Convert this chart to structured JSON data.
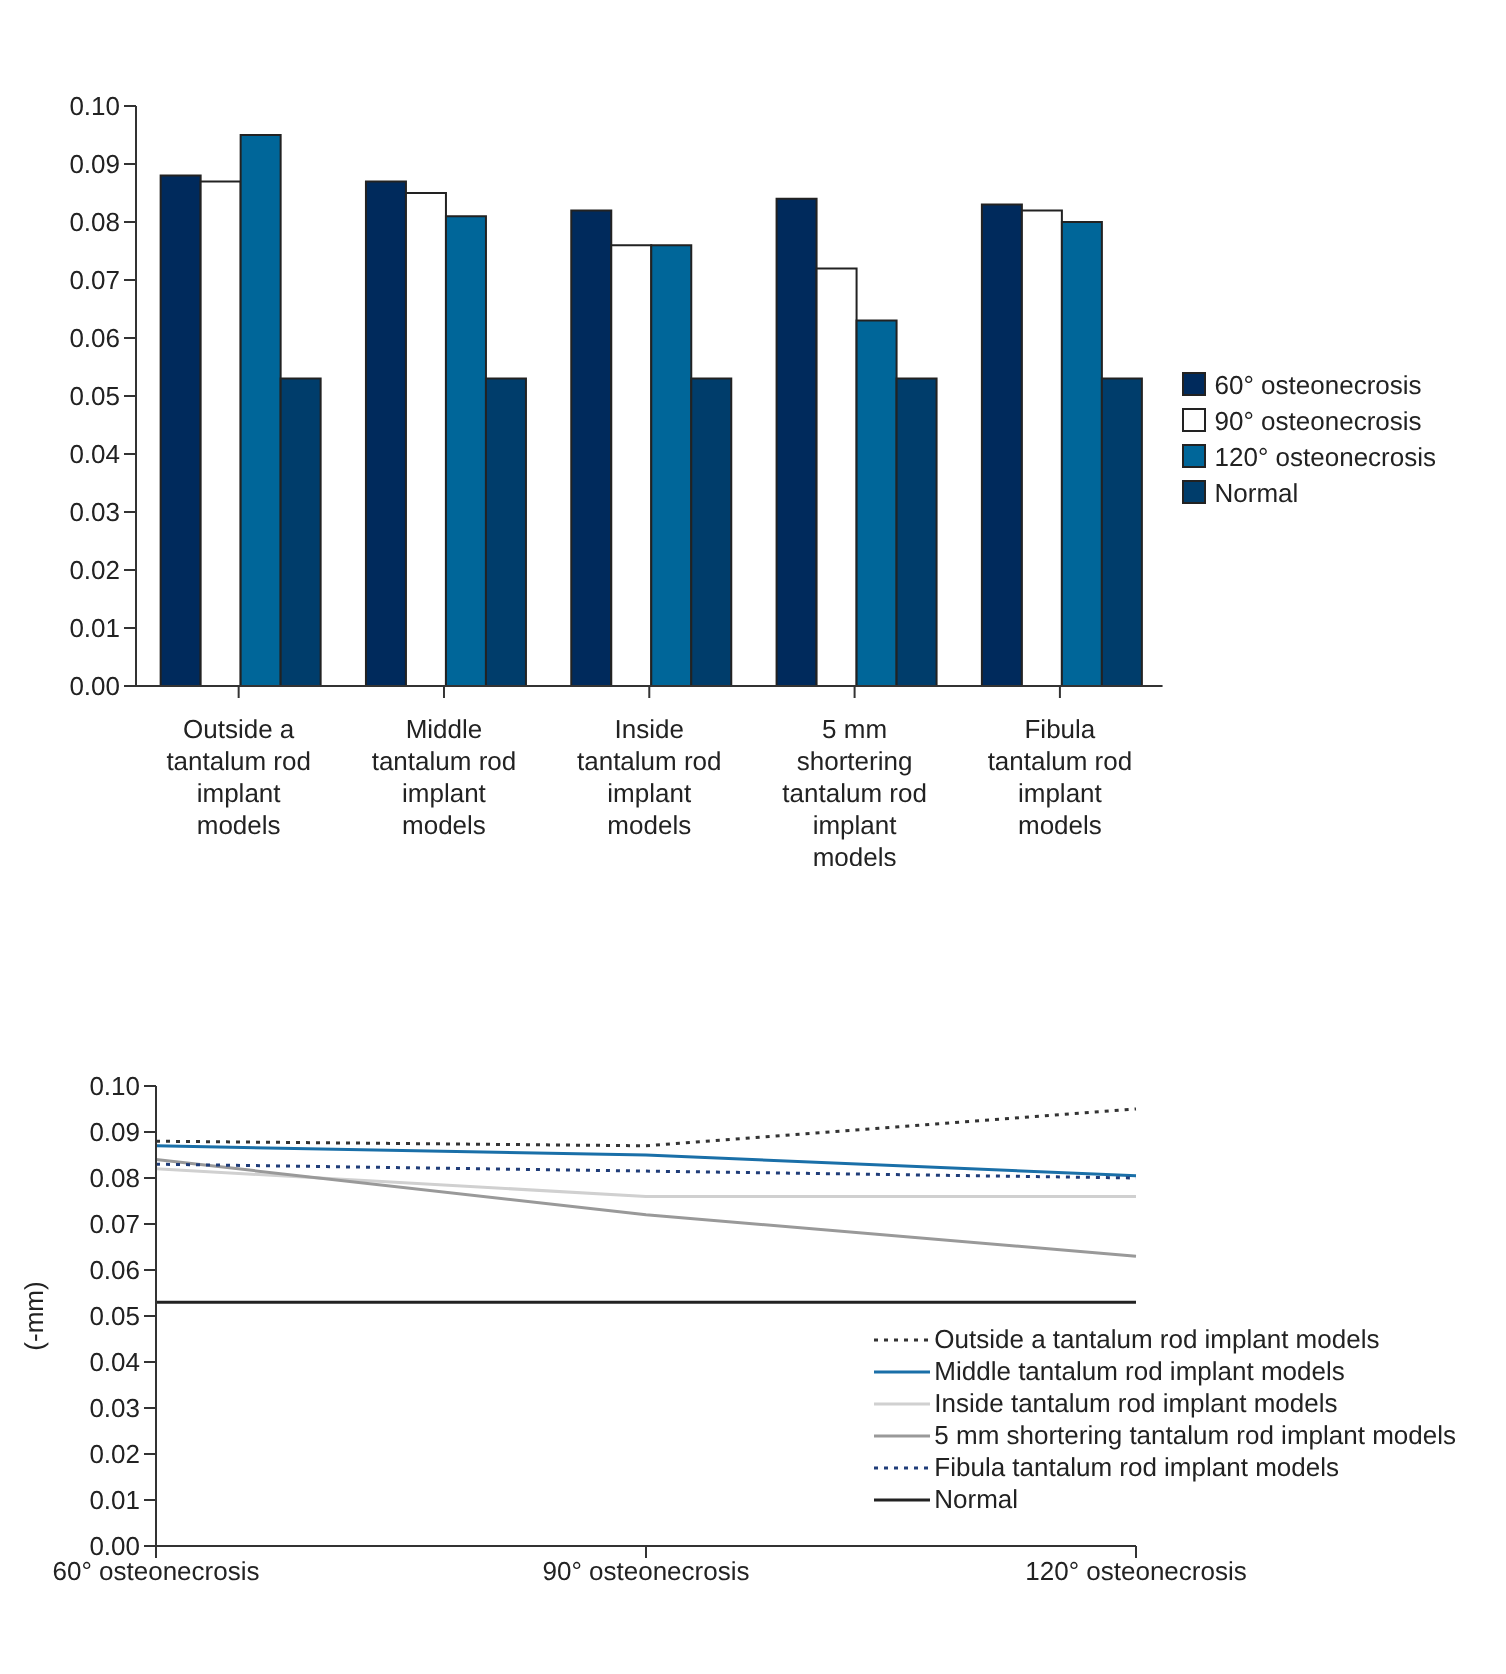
{
  "chart_data": [
    {
      "type": "bar",
      "categories": [
        "Outside a tantalum rod implant models",
        "Middle tantalum rod implant models",
        "Inside tantalum rod implant models",
        "5 mm shortering tantalum rod implant models",
        "Fibula tantalum rod implant models"
      ],
      "series": [
        {
          "name": "60° osteonecrosis",
          "color": "#002a5c",
          "values": [
            0.088,
            0.087,
            0.082,
            0.084,
            0.083
          ]
        },
        {
          "name": "90° osteonecrosis",
          "color": "#ffffff",
          "values": [
            0.087,
            0.085,
            0.076,
            0.072,
            0.082
          ]
        },
        {
          "name": "120° osteonecrosis",
          "color": "#006699",
          "values": [
            0.095,
            0.081,
            0.076,
            0.063,
            0.08
          ]
        },
        {
          "name": "Normal",
          "color": "#003d6b",
          "values": [
            0.053,
            0.053,
            0.053,
            0.053,
            0.053
          ]
        }
      ],
      "ylim": [
        0,
        0.1
      ],
      "yticks": [
        {
          "value": 0,
          "label": "0.00"
        },
        {
          "value": 0.01,
          "label": "0.01"
        },
        {
          "value": 0.02,
          "label": "0.02"
        },
        {
          "value": 0.03,
          "label": "0.03"
        },
        {
          "value": 0.04,
          "label": "0.04"
        },
        {
          "value": 0.05,
          "label": "0.05"
        },
        {
          "value": 0.06,
          "label": "0.06"
        },
        {
          "value": 0.07,
          "label": "0.07"
        },
        {
          "value": 0.08,
          "label": "0.08"
        },
        {
          "value": 0.09,
          "label": "0.09"
        },
        {
          "value": 0.1,
          "label": "0.10"
        }
      ],
      "legend": "right"
    },
    {
      "type": "line",
      "ylabel": "(-mm)",
      "categories": [
        "60° osteonecrosis",
        "90° osteonecrosis",
        "120° osteonecrosis"
      ],
      "marker": "none",
      "series": [
        {
          "name": "Outside a tantalum rod implant models",
          "color": "#333333",
          "line_style": "dotted",
          "values": [
            0.088,
            0.087,
            0.095
          ]
        },
        {
          "name": "Middle tantalum rod implant models",
          "color": "#1a6fa8",
          "line_style": "solid",
          "values": [
            0.087,
            0.085,
            0.0805
          ]
        },
        {
          "name": "Inside tantalum rod implant models",
          "color": "#d0d0d0",
          "line_style": "solid",
          "values": [
            0.082,
            0.076,
            0.076
          ]
        },
        {
          "name": "5 mm shortering tantalum rod implant models",
          "color": "#999999",
          "line_style": "solid",
          "values": [
            0.084,
            0.072,
            0.063
          ]
        },
        {
          "name": "Fibula tantalum rod implant models",
          "color": "#1f3c78",
          "line_style": "dotted",
          "values": [
            0.083,
            0.0815,
            0.08
          ]
        },
        {
          "name": "Normal",
          "color": "#222222",
          "line_style": "solid",
          "values": [
            0.053,
            0.053,
            0.053
          ]
        }
      ],
      "ylim": [
        0,
        0.1
      ],
      "yticks": [
        {
          "value": 0,
          "label": "0.00"
        },
        {
          "value": 0.01,
          "label": "0.01"
        },
        {
          "value": 0.02,
          "label": "0.02"
        },
        {
          "value": 0.03,
          "label": "0.03"
        },
        {
          "value": 0.04,
          "label": "0.04"
        },
        {
          "value": 0.05,
          "label": "0.05"
        },
        {
          "value": 0.06,
          "label": "0.06"
        },
        {
          "value": 0.07,
          "label": "0.07"
        },
        {
          "value": 0.08,
          "label": "0.08"
        },
        {
          "value": 0.09,
          "label": "0.09"
        },
        {
          "value": 0.1,
          "label": "0.10"
        }
      ],
      "legend": "bottom right"
    }
  ]
}
